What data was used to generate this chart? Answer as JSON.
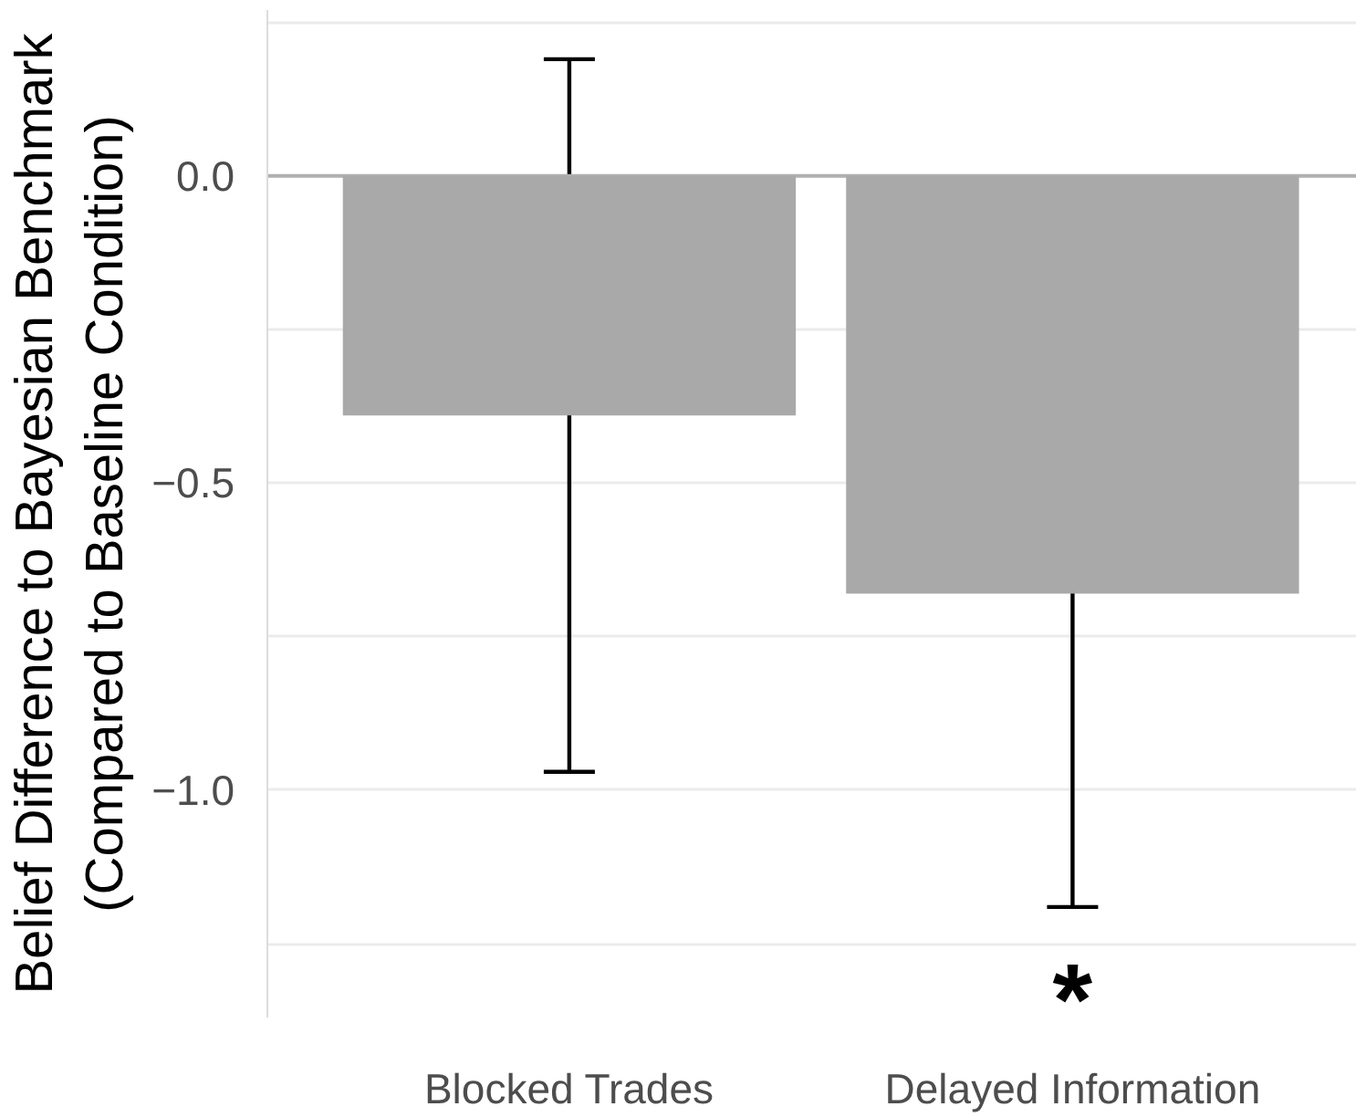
{
  "chart_data": {
    "type": "bar",
    "ylabel": "Belief Difference to Bayesian Benchmark\n(Compared to Baseline Condition)",
    "categories": [
      "Blocked Trades",
      "Delayed Information"
    ],
    "values": [
      -0.39,
      -0.68
    ],
    "errors": [
      0.58,
      0.51
    ],
    "color": "#a9a9a9",
    "ylim": [
      -1.37,
      0.27
    ],
    "yticks": [
      {
        "value": 0.25,
        "label": null
      },
      {
        "value": 0,
        "label": "0.0"
      },
      {
        "value": -0.25,
        "label": null
      },
      {
        "value": -0.5,
        "label": "−0.5"
      },
      {
        "value": -0.75,
        "label": null
      },
      {
        "value": -1,
        "label": "−1.0"
      },
      {
        "value": -1.25,
        "label": null
      }
    ],
    "grid": "y",
    "ref_lines": [
      {
        "axis": "y",
        "value": 0,
        "color": "#b0b0b0"
      }
    ],
    "annotations": [
      {
        "text": "*",
        "x": "Delayed Information",
        "y": -1.19
      }
    ]
  }
}
